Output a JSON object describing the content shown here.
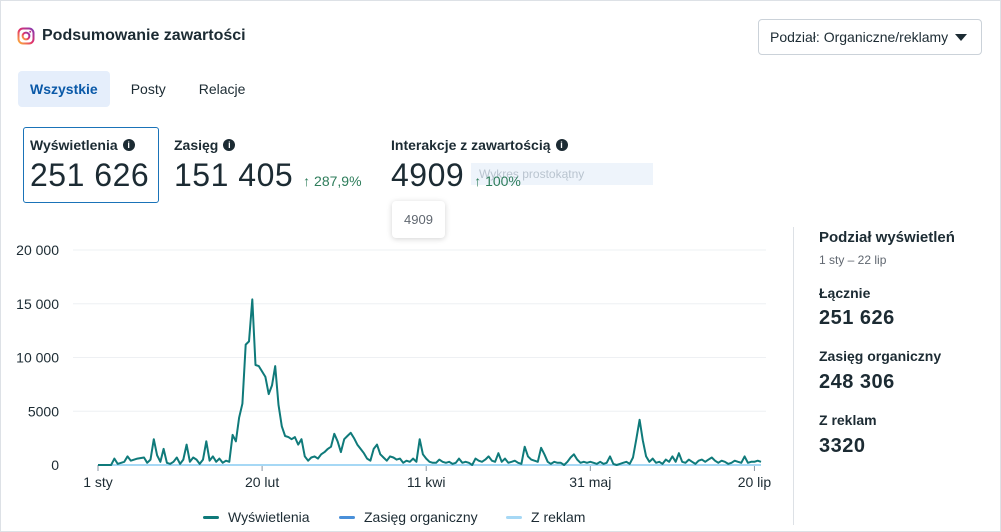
{
  "header": {
    "title": "Podsumowanie zawartości",
    "icon": "instagram-icon"
  },
  "dropdown": {
    "label": "Podział: Organiczne/reklamy"
  },
  "tabs": [
    {
      "label": "Wszystkie",
      "active": true
    },
    {
      "label": "Posty",
      "active": false
    },
    {
      "label": "Relacje",
      "active": false
    }
  ],
  "metrics": {
    "views": {
      "label": "Wyświetlenia",
      "value": "251 626"
    },
    "reach": {
      "label": "Zasięg",
      "value": "151 405",
      "delta": "↑ 287,9%"
    },
    "interactions": {
      "label": "Interakcje z zawartością",
      "value": "4909",
      "delta": "↑ 100%"
    }
  },
  "ghost_text": "Wykres prostokątny",
  "tooltip": {
    "value": "4909"
  },
  "side_panel": {
    "title": "Podział wyświetleń",
    "range": "1 sty – 22 lip",
    "total_label": "Łącznie",
    "total_value": "251 626",
    "organic_label": "Zasięg organiczny",
    "organic_value": "248 306",
    "ads_label": "Z reklam",
    "ads_value": "3320"
  },
  "colors": {
    "views": "#0f7a7a",
    "organic": "#4a90d9",
    "ads": "#a6d8f5",
    "accent": "#0a59a8",
    "delta": "#2e7d5b"
  },
  "chart_data": {
    "type": "line",
    "x_tick_labels": [
      "1 sty",
      "20 lut",
      "11 kwi",
      "31 maj",
      "20 lip"
    ],
    "x_tick_days": [
      0,
      50,
      100,
      150,
      200
    ],
    "y_ticks": [
      0,
      5000,
      10000,
      15000,
      20000
    ],
    "y_tick_labels": [
      "0",
      "5000",
      "10 000",
      "15 000",
      "20 000"
    ],
    "ylim": [
      0,
      20000
    ],
    "xlim_days": [
      0,
      202
    ],
    "series": [
      {
        "name": "Wyświetlenia",
        "color": "#0f7a7a",
        "points": [
          [
            0,
            0
          ],
          [
            4,
            0
          ],
          [
            5,
            600
          ],
          [
            6,
            100
          ],
          [
            8,
            300
          ],
          [
            9,
            800
          ],
          [
            10,
            400
          ],
          [
            12,
            600
          ],
          [
            14,
            700
          ],
          [
            15,
            200
          ],
          [
            16,
            500
          ],
          [
            17,
            2400
          ],
          [
            18,
            900
          ],
          [
            19,
            300
          ],
          [
            20,
            1500
          ],
          [
            21,
            200
          ],
          [
            22,
            100
          ],
          [
            23,
            300
          ],
          [
            24,
            700
          ],
          [
            25,
            100
          ],
          [
            26,
            500
          ],
          [
            27,
            1900
          ],
          [
            28,
            300
          ],
          [
            29,
            700
          ],
          [
            30,
            500
          ],
          [
            31,
            100
          ],
          [
            32,
            500
          ],
          [
            33,
            2200
          ],
          [
            34,
            400
          ],
          [
            35,
            800
          ],
          [
            36,
            300
          ],
          [
            37,
            600
          ],
          [
            38,
            200
          ],
          [
            39,
            400
          ],
          [
            40,
            300
          ],
          [
            41,
            2800
          ],
          [
            42,
            2200
          ],
          [
            43,
            4400
          ],
          [
            44,
            5700
          ],
          [
            45,
            11200
          ],
          [
            46,
            11500
          ],
          [
            47,
            15400
          ],
          [
            48,
            9300
          ],
          [
            49,
            9200
          ],
          [
            50,
            8700
          ],
          [
            51,
            8200
          ],
          [
            52,
            6600
          ],
          [
            53,
            7400
          ],
          [
            54,
            9200
          ],
          [
            55,
            5600
          ],
          [
            56,
            3600
          ],
          [
            57,
            2700
          ],
          [
            58,
            2600
          ],
          [
            59,
            2400
          ],
          [
            60,
            2600
          ],
          [
            61,
            1900
          ],
          [
            62,
            2400
          ],
          [
            63,
            800
          ],
          [
            64,
            400
          ],
          [
            65,
            700
          ],
          [
            66,
            800
          ],
          [
            67,
            600
          ],
          [
            68,
            1000
          ],
          [
            69,
            1200
          ],
          [
            70,
            1500
          ],
          [
            71,
            1700
          ],
          [
            72,
            2900
          ],
          [
            73,
            2200
          ],
          [
            74,
            1200
          ],
          [
            75,
            2400
          ],
          [
            76,
            2700
          ],
          [
            77,
            3000
          ],
          [
            78,
            2500
          ],
          [
            79,
            1900
          ],
          [
            80,
            1500
          ],
          [
            81,
            1100
          ],
          [
            82,
            600
          ],
          [
            83,
            400
          ],
          [
            84,
            1500
          ],
          [
            85,
            1900
          ],
          [
            86,
            1000
          ],
          [
            87,
            700
          ],
          [
            88,
            400
          ],
          [
            89,
            800
          ],
          [
            90,
            700
          ],
          [
            91,
            500
          ],
          [
            92,
            600
          ],
          [
            93,
            200
          ],
          [
            94,
            400
          ],
          [
            95,
            300
          ],
          [
            96,
            600
          ],
          [
            97,
            300
          ],
          [
            98,
            2400
          ],
          [
            99,
            1000
          ],
          [
            100,
            600
          ],
          [
            101,
            300
          ],
          [
            102,
            200
          ],
          [
            103,
            200
          ],
          [
            104,
            500
          ],
          [
            105,
            300
          ],
          [
            106,
            200
          ],
          [
            107,
            300
          ],
          [
            108,
            100
          ],
          [
            109,
            200
          ],
          [
            110,
            600
          ],
          [
            111,
            200
          ],
          [
            112,
            300
          ],
          [
            113,
            200
          ],
          [
            114,
            0
          ],
          [
            115,
            600
          ],
          [
            116,
            400
          ],
          [
            117,
            300
          ],
          [
            118,
            500
          ],
          [
            119,
            800
          ],
          [
            120,
            400
          ],
          [
            121,
            300
          ],
          [
            122,
            1100
          ],
          [
            123,
            300
          ],
          [
            124,
            600
          ],
          [
            125,
            200
          ],
          [
            126,
            300
          ],
          [
            127,
            400
          ],
          [
            128,
            200
          ],
          [
            129,
            100
          ],
          [
            130,
            1700
          ],
          [
            131,
            800
          ],
          [
            132,
            500
          ],
          [
            133,
            400
          ],
          [
            134,
            300
          ],
          [
            135,
            1600
          ],
          [
            136,
            1000
          ],
          [
            137,
            300
          ],
          [
            138,
            100
          ],
          [
            139,
            300
          ],
          [
            140,
            200
          ],
          [
            141,
            200
          ],
          [
            142,
            0
          ],
          [
            143,
            300
          ],
          [
            144,
            700
          ],
          [
            145,
            1000
          ],
          [
            146,
            500
          ],
          [
            147,
            200
          ],
          [
            148,
            300
          ],
          [
            149,
            200
          ],
          [
            150,
            300
          ],
          [
            151,
            200
          ],
          [
            152,
            100
          ],
          [
            153,
            300
          ],
          [
            154,
            100
          ],
          [
            155,
            200
          ],
          [
            156,
            800
          ],
          [
            157,
            100
          ],
          [
            158,
            0
          ],
          [
            159,
            100
          ],
          [
            160,
            200
          ],
          [
            161,
            300
          ],
          [
            162,
            100
          ],
          [
            163,
            700
          ],
          [
            164,
            2400
          ],
          [
            165,
            4200
          ],
          [
            166,
            2300
          ],
          [
            167,
            800
          ],
          [
            168,
            300
          ],
          [
            169,
            600
          ],
          [
            170,
            200
          ],
          [
            171,
            300
          ],
          [
            172,
            100
          ],
          [
            173,
            500
          ],
          [
            174,
            300
          ],
          [
            175,
            800
          ],
          [
            176,
            300
          ],
          [
            177,
            1100
          ],
          [
            178,
            300
          ],
          [
            179,
            200
          ],
          [
            180,
            500
          ],
          [
            181,
            300
          ],
          [
            182,
            100
          ],
          [
            183,
            400
          ],
          [
            184,
            500
          ],
          [
            185,
            300
          ],
          [
            186,
            500
          ],
          [
            187,
            700
          ],
          [
            188,
            400
          ],
          [
            189,
            200
          ],
          [
            190,
            400
          ],
          [
            191,
            300
          ],
          [
            192,
            100
          ],
          [
            193,
            200
          ],
          [
            194,
            400
          ],
          [
            195,
            300
          ],
          [
            196,
            200
          ],
          [
            197,
            800
          ],
          [
            198,
            200
          ],
          [
            199,
            300
          ],
          [
            200,
            300
          ],
          [
            201,
            400
          ],
          [
            202,
            300
          ]
        ]
      },
      {
        "name": "Zasięg organiczny",
        "color": "#4a90d9",
        "constant": 0
      },
      {
        "name": "Z reklam",
        "color": "#a6d8f5",
        "constant": 0
      }
    ]
  }
}
